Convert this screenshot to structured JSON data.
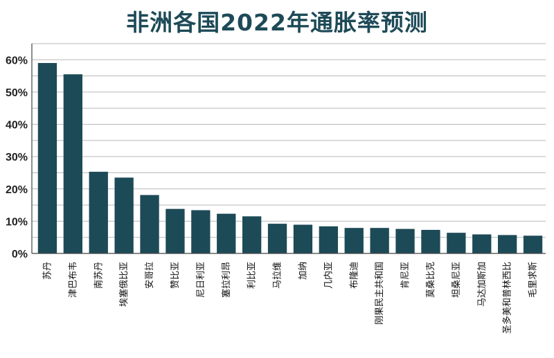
{
  "chart_data": {
    "type": "bar",
    "title": "非洲各国2022年通胀率预测",
    "xlabel": "",
    "ylabel": "",
    "categories": [
      "苏丹",
      "津巴布韦",
      "南苏丹",
      "埃塞俄比亚",
      "安哥拉",
      "赞比亚",
      "尼日利亚",
      "塞拉利昂",
      "利比亚",
      "马拉维",
      "加纳",
      "几内亚",
      "布隆迪",
      "刚果民主共和国",
      "肯尼亚",
      "莫桑比克",
      "坦桑尼亚",
      "马达加斯加",
      "圣多美和普林西比",
      "毛里求斯"
    ],
    "values": [
      59.0,
      55.5,
      25.3,
      23.5,
      18.1,
      13.8,
      13.4,
      12.3,
      11.5,
      9.2,
      8.9,
      8.4,
      7.9,
      7.9,
      7.6,
      7.3,
      6.4,
      5.9,
      5.7,
      5.5
    ],
    "ylim": [
      0,
      65
    ],
    "yticks": [
      "0%",
      "10%",
      "20%",
      "30%",
      "40%",
      "50%",
      "60%"
    ],
    "ytick_values": [
      0,
      10,
      20,
      30,
      40,
      50,
      60
    ],
    "grid": true,
    "bar_color": "#1d4a57"
  }
}
